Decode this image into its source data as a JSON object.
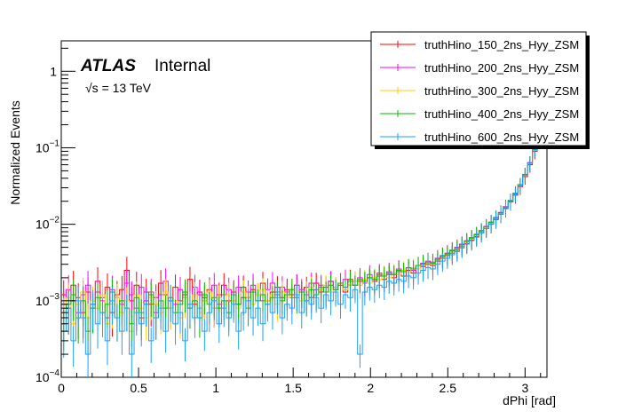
{
  "chart_data": {
    "type": "line",
    "style": "step-histogram-with-error-bars",
    "xlabel": "dPhi [rad]",
    "ylabel": "Normalized Events",
    "xlim": [
      0,
      3.14159
    ],
    "ylim": [
      0.0001,
      2.5
    ],
    "yscale": "log",
    "grid": false,
    "legend_position": "top-right",
    "x_ticks": [
      {
        "value": 0,
        "label": "0"
      },
      {
        "value": 0.5,
        "label": "0.5"
      },
      {
        "value": 1,
        "label": "1"
      },
      {
        "value": 1.5,
        "label": "1.5"
      },
      {
        "value": 2,
        "label": "2"
      },
      {
        "value": 2.5,
        "label": "2.5"
      },
      {
        "value": 3,
        "label": "3"
      }
    ],
    "y_ticks": [
      {
        "value": 0.0001,
        "base": "10",
        "exp": "−4"
      },
      {
        "value": 0.001,
        "base": "10",
        "exp": "−3"
      },
      {
        "value": 0.01,
        "base": "10",
        "exp": "−2"
      },
      {
        "value": 0.1,
        "base": "10",
        "exp": "−1"
      },
      {
        "value": 1,
        "base": "1",
        "exp": ""
      }
    ],
    "x": [
      0.0157,
      0.0471,
      0.0785,
      0.11,
      0.1414,
      0.1728,
      0.2042,
      0.2356,
      0.267,
      0.2985,
      0.3299,
      0.3613,
      0.3927,
      0.4241,
      0.4555,
      0.4869,
      0.5184,
      0.5498,
      0.5812,
      0.6126,
      0.644,
      0.6754,
      0.7069,
      0.7383,
      0.7697,
      0.8011,
      0.8325,
      0.8639,
      0.8954,
      0.9268,
      0.9582,
      0.9896,
      1.021,
      1.0524,
      1.0838,
      1.1153,
      1.1467,
      1.1781,
      1.2095,
      1.2409,
      1.2723,
      1.3038,
      1.3352,
      1.3666,
      1.398,
      1.4294,
      1.4608,
      1.4923,
      1.5237,
      1.5551,
      1.5865,
      1.6179,
      1.6493,
      1.6808,
      1.7122,
      1.7436,
      1.775,
      1.8064,
      1.8378,
      1.8692,
      1.9007,
      1.9321,
      1.9635,
      1.9949,
      2.0263,
      2.0577,
      2.0892,
      2.1206,
      2.152,
      2.1834,
      2.2148,
      2.2462,
      2.2777,
      2.3091,
      2.3405,
      2.3719,
      2.4033,
      2.4347,
      2.4662,
      2.4976,
      2.529,
      2.5604,
      2.5918,
      2.6232,
      2.6546,
      2.6861,
      2.7175,
      2.7489,
      2.7803,
      2.8117,
      2.8431,
      2.8746,
      2.906,
      2.9374,
      2.9688,
      3.0002,
      3.0316,
      3.0631,
      3.0945,
      3.1259
    ],
    "series": [
      {
        "name": "truthHino_150_2ns_Hyy_ZSM",
        "color": "#ff0000",
        "values": [
          0.0012,
          0.0008,
          0.0016,
          0.0011,
          0.0007,
          0.0013,
          0.0009,
          0.0018,
          0.0011,
          0.0015,
          0.0007,
          0.0012,
          0.0014,
          0.0025,
          0.001,
          0.0016,
          0.0006,
          0.0013,
          0.0009,
          0.0011,
          0.0017,
          0.0012,
          0.0008,
          0.0015,
          0.001,
          0.0012,
          0.0019,
          0.0009,
          0.0013,
          0.0011,
          0.0014,
          0.0008,
          0.0012,
          0.0016,
          0.001,
          0.0013,
          0.0009,
          0.0015,
          0.0011,
          0.0014,
          0.0012,
          0.0017,
          0.001,
          0.0013,
          0.0015,
          0.0011,
          0.0014,
          0.0012,
          0.0016,
          0.0013,
          0.0015,
          0.0011,
          0.0017,
          0.0013,
          0.0015,
          0.0018,
          0.0014,
          0.0016,
          0.0013,
          0.0019,
          0.0016,
          0.0018,
          0.0017,
          0.002,
          0.0018,
          0.0021,
          0.0019,
          0.0022,
          0.002,
          0.0024,
          0.0021,
          0.0025,
          0.0023,
          0.0026,
          0.0028,
          0.003,
          0.0029,
          0.0033,
          0.0036,
          0.0039,
          0.0042,
          0.0046,
          0.0051,
          0.0056,
          0.0062,
          0.0069,
          0.0078,
          0.0088,
          0.01,
          0.0115,
          0.0135,
          0.016,
          0.0195,
          0.024,
          0.031,
          0.042,
          0.06,
          0.09,
          0.15,
          0.3
        ]
      },
      {
        "name": "truthHino_200_2ns_Hyy_ZSM",
        "color": "#ff00ff",
        "values": [
          0.0009,
          0.0014,
          0.001,
          0.0007,
          0.0012,
          0.0016,
          0.0008,
          0.0013,
          0.001,
          0.0006,
          0.0014,
          0.0011,
          0.0009,
          0.0017,
          0.0012,
          0.0008,
          0.0015,
          0.001,
          0.0013,
          0.0007,
          0.0012,
          0.0018,
          0.001,
          0.0009,
          0.0014,
          0.0011,
          0.0008,
          0.0015,
          0.0012,
          0.001,
          0.0013,
          0.0016,
          0.0009,
          0.0012,
          0.0014,
          0.001,
          0.0015,
          0.0011,
          0.0013,
          0.0016,
          0.0012,
          0.001,
          0.0014,
          0.0017,
          0.0012,
          0.0015,
          0.0013,
          0.0011,
          0.0016,
          0.0014,
          0.0012,
          0.0017,
          0.0014,
          0.0016,
          0.0013,
          0.0018,
          0.0015,
          0.0017,
          0.0019,
          0.0016,
          0.0018,
          0.002,
          0.0017,
          0.0022,
          0.0019,
          0.0023,
          0.0021,
          0.0024,
          0.0022,
          0.0026,
          0.0024,
          0.0027,
          0.0025,
          0.0029,
          0.0031,
          0.0033,
          0.0032,
          0.0036,
          0.0039,
          0.0042,
          0.0046,
          0.005,
          0.0055,
          0.0061,
          0.0067,
          0.0074,
          0.0083,
          0.0094,
          0.0107,
          0.0123,
          0.0143,
          0.017,
          0.0205,
          0.0255,
          0.033,
          0.045,
          0.064,
          0.096,
          0.16,
          0.32
        ]
      },
      {
        "name": "truthHino_300_2ns_Hyy_ZSM",
        "color": "#ffcc00",
        "values": [
          0.0007,
          0.0011,
          0.0005,
          0.0009,
          0.0013,
          0.0006,
          0.001,
          0.0008,
          0.0012,
          0.0005,
          0.0009,
          0.0011,
          0.0007,
          0.001,
          0.0004,
          0.0012,
          0.0008,
          0.0006,
          0.0011,
          0.0009,
          0.0007,
          0.0013,
          0.0008,
          0.001,
          0.0006,
          0.0011,
          0.0009,
          0.0012,
          0.0007,
          0.001,
          0.0013,
          0.0008,
          0.0011,
          0.0009,
          0.0012,
          0.001,
          0.0008,
          0.0013,
          0.0011,
          0.0009,
          0.0012,
          0.0014,
          0.001,
          0.0012,
          0.0009,
          0.0013,
          0.0011,
          0.0014,
          0.0012,
          0.001,
          0.0013,
          0.0015,
          0.0012,
          0.0014,
          0.0016,
          0.0013,
          0.0015,
          0.0017,
          0.0014,
          0.0016,
          0.0018,
          0.0016,
          0.0019,
          0.0017,
          0.002,
          0.0019,
          0.0022,
          0.002,
          0.0023,
          0.0022,
          0.0025,
          0.0024,
          0.0027,
          0.0026,
          0.0029,
          0.0031,
          0.003,
          0.0034,
          0.0037,
          0.004,
          0.0044,
          0.0048,
          0.0053,
          0.0059,
          0.0065,
          0.0072,
          0.0081,
          0.0092,
          0.0105,
          0.0121,
          0.014,
          0.0167,
          0.02,
          0.025,
          0.0325,
          0.044,
          0.063,
          0.095,
          0.158,
          0.31
        ]
      },
      {
        "name": "truthHino_400_2ns_Hyy_ZSM",
        "color": "#00bb00",
        "values": [
          0.0005,
          0.0009,
          0.0012,
          0.0006,
          0.001,
          0.0004,
          0.0008,
          0.0011,
          0.0007,
          0.0009,
          0.0013,
          0.0006,
          0.001,
          0.0008,
          0.0005,
          0.0011,
          0.0007,
          0.0009,
          0.0012,
          0.0006,
          0.001,
          0.0008,
          0.0011,
          0.0007,
          0.0009,
          0.0013,
          0.0008,
          0.001,
          0.0006,
          0.0012,
          0.0009,
          0.0011,
          0.0008,
          0.001,
          0.0007,
          0.0012,
          0.0009,
          0.0011,
          0.0008,
          0.0013,
          0.001,
          0.0012,
          0.0009,
          0.0011,
          0.0013,
          0.001,
          0.0012,
          0.0014,
          0.0011,
          0.0013,
          0.001,
          0.0014,
          0.0012,
          0.0015,
          0.0013,
          0.0016,
          0.0014,
          0.0017,
          0.0015,
          0.0018,
          0.0016,
          0.0019,
          0.0018,
          0.002,
          0.0019,
          0.0022,
          0.0021,
          0.0023,
          0.0022,
          0.0025,
          0.0024,
          0.0027,
          0.0026,
          0.0029,
          0.003,
          0.0032,
          0.0031,
          0.0035,
          0.0038,
          0.0041,
          0.0045,
          0.0049,
          0.0054,
          0.006,
          0.0066,
          0.0073,
          0.0082,
          0.0093,
          0.0106,
          0.0122,
          0.0142,
          0.0168,
          0.0202,
          0.0252,
          0.0328,
          0.0445,
          0.0635,
          0.0955,
          0.159,
          0.315
        ]
      },
      {
        "name": "truthHino_600_2ns_Hyy_ZSM",
        "color": "#1f9fff",
        "values": [
          0.0004,
          0.0008,
          0.0003,
          0.001,
          0.0006,
          0.0002,
          0.0009,
          0.0005,
          0.0007,
          0.0003,
          0.001,
          0.0006,
          0.0004,
          0.0008,
          0.0002,
          0.0007,
          0.0005,
          0.0009,
          0.0003,
          0.0006,
          0.0008,
          0.0004,
          0.001,
          0.0005,
          0.0007,
          0.0003,
          0.0009,
          0.0006,
          0.0008,
          0.0004,
          0.0007,
          0.001,
          0.0005,
          0.0008,
          0.0006,
          0.0009,
          0.0004,
          0.0007,
          0.001,
          0.0006,
          0.0008,
          0.0005,
          0.0009,
          0.0007,
          0.0011,
          0.0006,
          0.0009,
          0.0008,
          0.0012,
          0.0007,
          0.001,
          0.0009,
          0.0011,
          0.0008,
          0.0012,
          0.001,
          0.0013,
          0.0009,
          0.0012,
          0.0011,
          0.0014,
          0.0002,
          0.0013,
          0.0015,
          0.0014,
          0.0016,
          0.0015,
          0.0018,
          0.0017,
          0.0019,
          0.0018,
          0.0021,
          0.002,
          0.0023,
          0.0025,
          0.0027,
          0.0026,
          0.003,
          0.0033,
          0.0036,
          0.004,
          0.0044,
          0.0049,
          0.0055,
          0.0061,
          0.0068,
          0.0077,
          0.0088,
          0.0101,
          0.0117,
          0.0137,
          0.0163,
          0.0197,
          0.0247,
          0.0322,
          0.0438,
          0.0625,
          0.094,
          0.157,
          0.305
        ]
      }
    ]
  },
  "labels": {
    "atlas": "ATLAS",
    "internal": "Internal",
    "energy": "√s = 13 TeV"
  }
}
